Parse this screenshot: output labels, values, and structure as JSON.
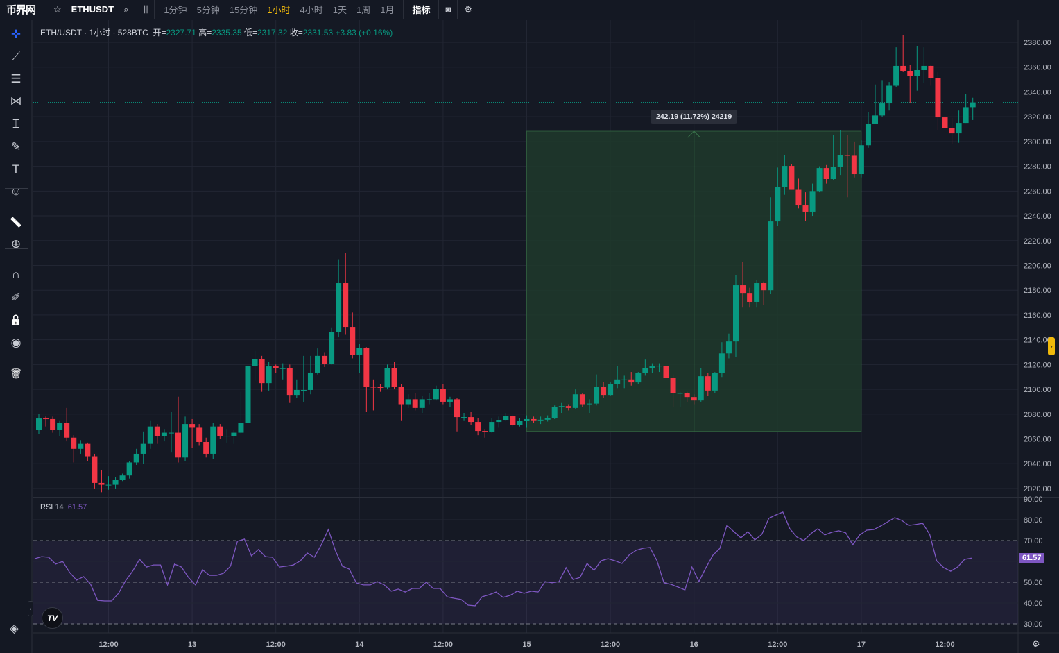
{
  "topbar": {
    "logo": "币界网",
    "symbol": "ETHUSDT",
    "intervals": [
      "1分钟",
      "5分钟",
      "15分钟",
      "1小时",
      "4小时",
      "1天",
      "1周",
      "1月"
    ],
    "active_interval": "1小时",
    "indicators_label": "指标",
    "icons": [
      "star-icon",
      "search-icon",
      "candles-icon",
      "camera-icon",
      "settings-icon"
    ]
  },
  "toolbar": {
    "tools": [
      "crosshair-icon",
      "trend-line-icon",
      "horizontal-lines-icon",
      "pattern-icon",
      "measure-range-icon",
      "brush-icon",
      "text-icon",
      "emoji-icon",
      "ruler-icon",
      "zoom-in-icon",
      "magnet-icon",
      "lock-drawing-icon",
      "unlock-icon",
      "eye-icon",
      "trash-icon"
    ],
    "bottom_icon": "layers-icon"
  },
  "legend": {
    "title": "ETH/USDT · 1小时 · 528BTC",
    "open_label": "开=",
    "open": "2327.71",
    "high_label": "高=",
    "high": "2335.35",
    "low_label": "低=",
    "low": "2317.32",
    "close_label": "收=",
    "close": "2331.53",
    "change": "+3.83 (+0.16%)"
  },
  "rsi_legend": {
    "name": "RSI",
    "period": "14",
    "value": "61.57"
  },
  "measure": {
    "label": "242.19 (11.72%) 24219",
    "from_price": 2066.11,
    "to_price": 2308.3,
    "start": "15 00:00",
    "end": "17 00:00",
    "arrow_at": "16 00:00"
  },
  "colors": {
    "up": "#089981",
    "down": "#f23645",
    "rsi": "#7e57c2",
    "measure_fill": "#1e3a2c",
    "active_interval": "#f0b90b"
  },
  "chart_data": {
    "type": "candlestick",
    "price_axis": {
      "ticks": [
        "2380.00",
        "2360.00",
        "2340.00",
        "2320.00",
        "2300.00",
        "2280.00",
        "2260.00",
        "2240.00",
        "2220.00",
        "2200.00",
        "2180.00",
        "2160.00",
        "2140.00",
        "2120.00",
        "2100.00",
        "2080.00",
        "2060.00",
        "2040.00",
        "2020.00"
      ],
      "range": [
        2015,
        2393
      ]
    },
    "time_axis": {
      "ticks": [
        "12:00",
        "13",
        "12:00",
        "14",
        "12:00",
        "15",
        "12:00",
        "16",
        "12:00",
        "17",
        "12:00"
      ]
    },
    "last_price": 2331.53,
    "grid": true,
    "candles_ohlc": [
      [
        2067.5,
        2080,
        2064,
        2076.5
      ],
      [
        2076.5,
        2078,
        2070,
        2076
      ],
      [
        2076,
        2078,
        2065,
        2067.5
      ],
      [
        2067.5,
        2075,
        2062,
        2073
      ],
      [
        2073,
        2085,
        2058,
        2061
      ],
      [
        2061,
        2063,
        2041,
        2052
      ],
      [
        2052,
        2059,
        2048,
        2056
      ],
      [
        2056,
        2057,
        2042,
        2046
      ],
      [
        2046,
        2048,
        2020,
        2024.5
      ],
      [
        2024.5,
        2035,
        2017,
        2023
      ],
      [
        2023,
        2030,
        2019,
        2023
      ],
      [
        2023,
        2029,
        2020,
        2027
      ],
      [
        2027,
        2032,
        2026,
        2030.5
      ],
      [
        2030.5,
        2042,
        2028,
        2041
      ],
      [
        2041,
        2052,
        2039,
        2048
      ],
      [
        2048,
        2066,
        2040,
        2056
      ],
      [
        2056,
        2075,
        2052,
        2070
      ],
      [
        2070,
        2072,
        2056,
        2062.5
      ],
      [
        2062.5,
        2068,
        2058,
        2065
      ],
      [
        2065,
        2082,
        2049,
        2065
      ],
      [
        2065,
        2094,
        2041,
        2045
      ],
      [
        2045,
        2078,
        2042,
        2072
      ],
      [
        2072,
        2076,
        2053,
        2069
      ],
      [
        2069,
        2072,
        2055,
        2057.5
      ],
      [
        2057.5,
        2061,
        2045,
        2048
      ],
      [
        2048,
        2073,
        2044,
        2070
      ],
      [
        2070,
        2072,
        2060,
        2062.5
      ],
      [
        2062.5,
        2068,
        2057,
        2062.5
      ],
      [
        2062.5,
        2067,
        2056,
        2065
      ],
      [
        2065,
        2098,
        2064,
        2073
      ],
      [
        2073,
        2140,
        2068,
        2119
      ],
      [
        2119,
        2131,
        2107,
        2124.5
      ],
      [
        2124.5,
        2127,
        2098,
        2105
      ],
      [
        2105,
        2122,
        2099,
        2118.5
      ],
      [
        2118.5,
        2120,
        2113,
        2117
      ],
      [
        2117,
        2121,
        2108,
        2117
      ],
      [
        2117,
        2120,
        2089,
        2095.5
      ],
      [
        2095.5,
        2108,
        2093,
        2099.5
      ],
      [
        2099.5,
        2127,
        2090,
        2099.5
      ],
      [
        2099.5,
        2127,
        2096,
        2113.5
      ],
      [
        2113.5,
        2133,
        2112,
        2127
      ],
      [
        2127,
        2130,
        2118,
        2120.7
      ],
      [
        2120.7,
        2150,
        2120,
        2146.5
      ],
      [
        2146.5,
        2205,
        2142,
        2185.7
      ],
      [
        2185.7,
        2210,
        2144,
        2150.4
      ],
      [
        2150.4,
        2162,
        2125,
        2128
      ],
      [
        2128,
        2137,
        2113,
        2133.6
      ],
      [
        2133.6,
        2134,
        2082,
        2102
      ],
      [
        2102,
        2108,
        2083,
        2101.7
      ],
      [
        2101.7,
        2104,
        2098,
        2101.5
      ],
      [
        2101.5,
        2120,
        2100,
        2117
      ],
      [
        2117,
        2122,
        2100,
        2102
      ],
      [
        2102,
        2104,
        2075,
        2088
      ],
      [
        2088,
        2096,
        2085,
        2092
      ],
      [
        2092,
        2097,
        2083,
        2085
      ],
      [
        2085,
        2095,
        2081,
        2092
      ],
      [
        2092,
        2097,
        2088,
        2092
      ],
      [
        2092,
        2103,
        2091,
        2100.6
      ],
      [
        2100.6,
        2104,
        2088,
        2090
      ],
      [
        2090,
        2094,
        2086,
        2092
      ],
      [
        2092,
        2093,
        2066,
        2077.6
      ],
      [
        2077.6,
        2081,
        2075,
        2077.6
      ],
      [
        2077.6,
        2082,
        2071,
        2073.7
      ],
      [
        2073.7,
        2077,
        2063,
        2066.4
      ],
      [
        2066.4,
        2068,
        2061,
        2065.8
      ],
      [
        2065.8,
        2077,
        2065,
        2073.7
      ],
      [
        2073.7,
        2078,
        2069,
        2075.4
      ],
      [
        2075.4,
        2081,
        2075,
        2078.2
      ],
      [
        2078.2,
        2079,
        2070,
        2071
      ],
      [
        2071,
        2077,
        2070,
        2074.8
      ],
      [
        2074.8,
        2079,
        2069,
        2076
      ],
      [
        2076,
        2078,
        2073,
        2075
      ],
      [
        2075,
        2078,
        2072,
        2075.5
      ],
      [
        2075.5,
        2079,
        2074,
        2077
      ],
      [
        2077,
        2087,
        2076,
        2085.6
      ],
      [
        2085.6,
        2089,
        2081,
        2086.5
      ],
      [
        2086.5,
        2088,
        2083,
        2085
      ],
      [
        2085,
        2100,
        2084,
        2096
      ],
      [
        2096,
        2097,
        2086,
        2088
      ],
      [
        2088,
        2092,
        2081,
        2088.5
      ],
      [
        2088.5,
        2112,
        2087,
        2102
      ],
      [
        2102,
        2106,
        2093,
        2095.5
      ],
      [
        2095.5,
        2106,
        2095,
        2104.5
      ],
      [
        2104.5,
        2119,
        2101,
        2108
      ],
      [
        2108,
        2111,
        2101,
        2108
      ],
      [
        2108,
        2114,
        2103,
        2105.6
      ],
      [
        2105.6,
        2114,
        2104,
        2113
      ],
      [
        2113,
        2124,
        2111,
        2117
      ],
      [
        2117,
        2121,
        2113,
        2118.5
      ],
      [
        2118.5,
        2121,
        2114,
        2119
      ],
      [
        2119,
        2120,
        2107,
        2109
      ],
      [
        2109,
        2112,
        2086,
        2097
      ],
      [
        2097,
        2098,
        2086,
        2097
      ],
      [
        2097,
        2098,
        2090,
        2093.8
      ],
      [
        2093.8,
        2096,
        2088,
        2091
      ],
      [
        2091,
        2117,
        2090,
        2110.6
      ],
      [
        2110.6,
        2113,
        2095,
        2099
      ],
      [
        2099,
        2114,
        2097,
        2113.4
      ],
      [
        2113.4,
        2138,
        2110,
        2129
      ],
      [
        2129,
        2145,
        2125,
        2138.6
      ],
      [
        2138.6,
        2192,
        2126,
        2184
      ],
      [
        2184,
        2203,
        2166,
        2177.8
      ],
      [
        2177.8,
        2182,
        2166,
        2170.6
      ],
      [
        2170.6,
        2188,
        2166,
        2185.7
      ],
      [
        2185.7,
        2187,
        2168,
        2180
      ],
      [
        2180,
        2255,
        2177,
        2235.5
      ],
      [
        2235.5,
        2279,
        2232,
        2263.5
      ],
      [
        2263.5,
        2289,
        2257,
        2280.3
      ],
      [
        2280.3,
        2282,
        2261,
        2261
      ],
      [
        2261,
        2270,
        2246,
        2248.4
      ],
      [
        2248.4,
        2259,
        2236,
        2243.4
      ],
      [
        2243.4,
        2266,
        2240,
        2260
      ],
      [
        2260,
        2280,
        2259,
        2278.6
      ],
      [
        2278.6,
        2281,
        2266,
        2269.7
      ],
      [
        2269.7,
        2305,
        2269,
        2279.7
      ],
      [
        2279.7,
        2309,
        2273,
        2289
      ],
      [
        2289,
        2305,
        2255,
        2288.5
      ],
      [
        2288.5,
        2300,
        2271,
        2273.6
      ],
      [
        2273.6,
        2301,
        2271,
        2297
      ],
      [
        2297,
        2324,
        2295,
        2314.5
      ],
      [
        2314.5,
        2346,
        2314,
        2321
      ],
      [
        2321,
        2349,
        2320,
        2330.7
      ],
      [
        2330.7,
        2348,
        2325,
        2345
      ],
      [
        2345,
        2376,
        2344,
        2361
      ],
      [
        2361,
        2386,
        2356,
        2357
      ],
      [
        2357,
        2362,
        2331,
        2352.7
      ],
      [
        2352.7,
        2377,
        2341,
        2357.6
      ],
      [
        2357.6,
        2376,
        2347,
        2361
      ],
      [
        2361,
        2362,
        2345,
        2351
      ],
      [
        2351,
        2356,
        2309,
        2319.5
      ],
      [
        2319.5,
        2331,
        2295,
        2310.6
      ],
      [
        2310.6,
        2319,
        2298,
        2306.6
      ],
      [
        2306.6,
        2325,
        2299,
        2315
      ],
      [
        2315,
        2338,
        2315,
        2327.71
      ],
      [
        2327.71,
        2335.35,
        2317.32,
        2331.53
      ]
    ],
    "rsi": {
      "period": 14,
      "axis_ticks": [
        "90.00",
        "80.00",
        "70.00",
        "50.00",
        "40.00",
        "30.00"
      ],
      "bands": [
        30,
        50,
        70
      ],
      "range": [
        26,
        92
      ],
      "values": [
        61.3,
        62.3,
        62,
        58.7,
        60,
        54.7,
        51,
        52.7,
        49,
        41.3,
        41,
        41,
        44.7,
        50.7,
        55.3,
        61,
        57.3,
        58.3,
        58.3,
        48.7,
        58.7,
        57.3,
        52.3,
        48.7,
        56,
        53.3,
        53.3,
        54.3,
        57.7,
        69.7,
        70.7,
        62.7,
        65.7,
        62.3,
        62,
        57.3,
        57.7,
        58.3,
        60.3,
        64,
        62,
        68,
        75.3,
        65.3,
        57.7,
        56.3,
        49.7,
        48.7,
        48.7,
        50.3,
        48.7,
        45.7,
        46.7,
        45.3,
        47,
        47,
        50,
        47,
        47,
        43,
        42.3,
        41.7,
        39,
        38.7,
        43,
        44,
        45.3,
        42.7,
        43.7,
        45.7,
        44.7,
        45.7,
        45.3,
        50.3,
        49.7,
        50.3,
        57,
        51.3,
        52.3,
        59,
        55.7,
        60.3,
        61.3,
        60.3,
        59,
        63,
        65.3,
        66.3,
        66.7,
        60.3,
        49.7,
        49,
        47.7,
        46.3,
        57.3,
        50.3,
        57,
        63,
        66.3,
        77.3,
        74.3,
        71.3,
        74.3,
        70.3,
        73,
        80.7,
        82.3,
        83.7,
        75.7,
        71.7,
        70,
        73.3,
        75.7,
        72.7,
        74,
        74.7,
        73.7,
        68,
        72.7,
        75,
        75.3,
        77,
        79,
        81,
        79.7,
        77.3,
        77.7,
        78.3,
        73,
        60.3,
        57,
        55.3,
        57.3,
        61,
        61.57
      ]
    }
  }
}
